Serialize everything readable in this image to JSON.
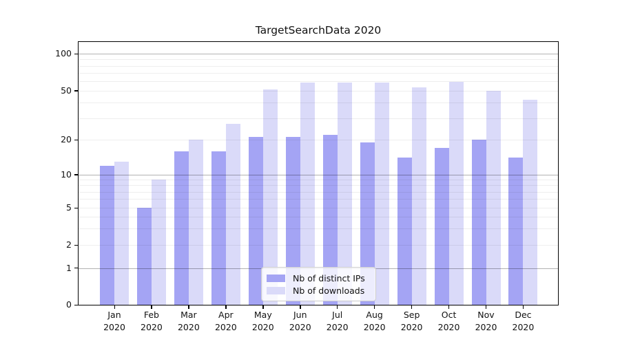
{
  "chart_data": {
    "type": "bar",
    "title": "TargetSearchData 2020",
    "categories": [
      {
        "month": "Jan",
        "year": "2020"
      },
      {
        "month": "Feb",
        "year": "2020"
      },
      {
        "month": "Mar",
        "year": "2020"
      },
      {
        "month": "Apr",
        "year": "2020"
      },
      {
        "month": "May",
        "year": "2020"
      },
      {
        "month": "Jun",
        "year": "2020"
      },
      {
        "month": "Jul",
        "year": "2020"
      },
      {
        "month": "Aug",
        "year": "2020"
      },
      {
        "month": "Sep",
        "year": "2020"
      },
      {
        "month": "Oct",
        "year": "2020"
      },
      {
        "month": "Nov",
        "year": "2020"
      },
      {
        "month": "Dec",
        "year": "2020"
      }
    ],
    "series": [
      {
        "name": "Nb of distinct IPs",
        "color": "#a4a4f4",
        "values": [
          12,
          5,
          16,
          16,
          21,
          21,
          22,
          19,
          14,
          17,
          20,
          14
        ]
      },
      {
        "name": "Nb of downloads",
        "color": "#dadaf9",
        "values": [
          13,
          9,
          20,
          27,
          51,
          58,
          58,
          58,
          53,
          59,
          50,
          42
        ]
      }
    ],
    "yscale": "symlog",
    "yticks": [
      0,
      1,
      2,
      5,
      10,
      20,
      50,
      100
    ],
    "ylim": [
      0,
      120
    ],
    "xlabel": "",
    "ylabel": "",
    "grid": "horizontal",
    "legend_position": "lower center"
  }
}
